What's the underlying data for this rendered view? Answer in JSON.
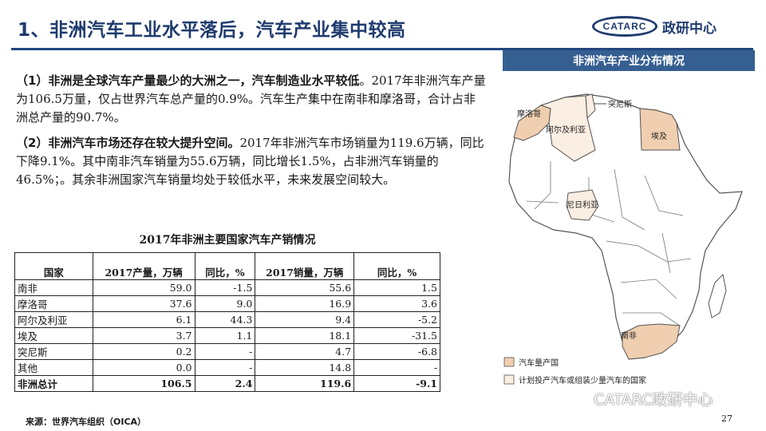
{
  "header": {
    "title": "1、非洲汽车工业水平落后，汽车产业集中较高",
    "logo_mark": "CATARC",
    "logo_text": "政研中心"
  },
  "paragraphs": {
    "p1_bold": "（1）非洲是全球汽车产量最少的大洲之一，汽车制造业水平较低",
    "p1_text": "。2017年非洲汽车产量为106.5万量，仅占世界汽车总产量的0.9%。汽车生产集中在南非和摩洛哥，合计占非洲总产量的90.7%。",
    "p2_bold": "（2）非洲汽车市场还存在较大提升空间。",
    "p2_text": "2017年非洲汽车市场销量为119.6万辆，同比下降9.1%。其中南非汽车销量为55.6万辆，同比增长1.5%，占非洲汽车销量的46.5%；。其余非洲国家汽车销量均处于较低水平，未来发展空间较大。"
  },
  "table": {
    "title": "2017年非洲主要国家汽车产销情况",
    "headers": [
      "国家",
      "2017产量，万辆",
      "同比，%",
      "2017销量，万辆",
      "同比，%"
    ],
    "rows": [
      [
        "南非",
        "59.0",
        "-1.5",
        "55.6",
        "1.5"
      ],
      [
        "摩洛哥",
        "37.6",
        "9.0",
        "16.9",
        "3.6"
      ],
      [
        "阿尔及利亚",
        "6.1",
        "44.3",
        "9.4",
        "-5.2"
      ],
      [
        "埃及",
        "3.7",
        "1.1",
        "18.1",
        "-31.5"
      ],
      [
        "突尼斯",
        "0.2",
        "-",
        "4.7",
        "-6.8"
      ],
      [
        "其他",
        "0.0",
        "-",
        "14.8",
        "-"
      ]
    ],
    "total": [
      "非洲总计",
      "106.5",
      "2.4",
      "119.6",
      "-9.1"
    ]
  },
  "source": "来源：世界汽车组织（OICA）",
  "page_number": "27",
  "map": {
    "title": "非洲汽车产业分布情况",
    "labels": {
      "morocco": "摩洛哥",
      "tunisia": "突尼斯",
      "algeria": "阿尔及利亚",
      "egypt": "埃及",
      "nigeria": "尼日利亚",
      "south_africa": "南非"
    },
    "legend": {
      "producer": "汽车量产国",
      "planned": "计划投产汽车或组装少量汽车的国家"
    },
    "colors": {
      "producer": "#f0cfb0",
      "planned": "#fbeee2",
      "other": "#ffffff",
      "border": "#555555"
    }
  },
  "watermark": {
    "text": "CATARC政研中心"
  }
}
